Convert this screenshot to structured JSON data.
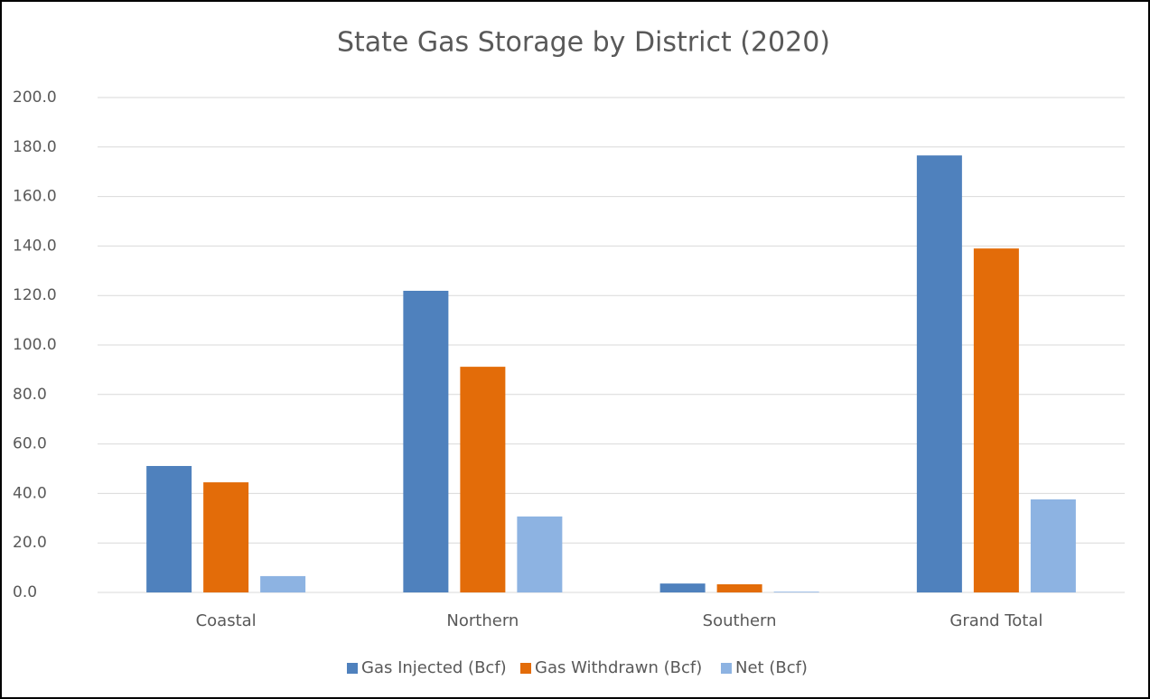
{
  "chart_data": {
    "type": "bar",
    "title": "State Gas Storage by District (2020)",
    "categories": [
      "Coastal",
      "Northern",
      "Southern",
      "Grand Total"
    ],
    "series": [
      {
        "name": "Gas Injected (Bcf)",
        "color": "#4f81bd",
        "values": [
          51.1,
          121.9,
          3.6,
          176.6
        ]
      },
      {
        "name": "Gas Withdrawn (Bcf)",
        "color": "#e36c09",
        "values": [
          44.5,
          91.2,
          3.3,
          139.0
        ]
      },
      {
        "name": "Net (Bcf)",
        "color": "#8db3e2",
        "values": [
          6.6,
          30.7,
          0.3,
          37.6
        ]
      }
    ],
    "ylim": [
      0,
      200
    ],
    "yticks": [
      {
        "value": 0,
        "label": "0.0"
      },
      {
        "value": 20,
        "label": "20.0"
      },
      {
        "value": 40,
        "label": "40.0"
      },
      {
        "value": 60,
        "label": "60.0"
      },
      {
        "value": 80,
        "label": "80.0"
      },
      {
        "value": 100,
        "label": "100.0"
      },
      {
        "value": 120,
        "label": "120.0"
      },
      {
        "value": 140,
        "label": "140.0"
      },
      {
        "value": 160,
        "label": "160.0"
      },
      {
        "value": 180,
        "label": "180.0"
      },
      {
        "value": 200,
        "label": "200.0"
      }
    ],
    "grid": true,
    "legend": "bottom"
  }
}
